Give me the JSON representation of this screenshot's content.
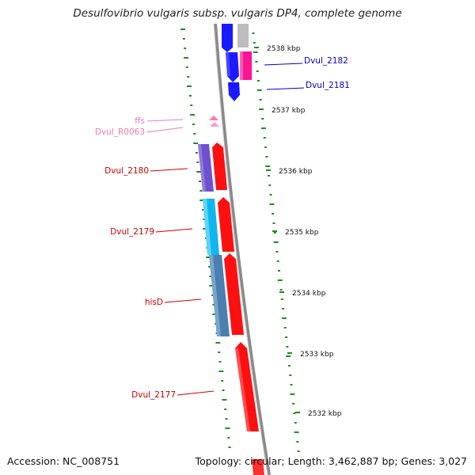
{
  "title": "Desulfovibrio vulgaris subsp. vulgaris DP4, complete genome",
  "footer": {
    "accession": "Accession: NC_008751",
    "stats": "Topology: circular; Length: 3,462,887 bp; Genes: 3,027"
  },
  "ticks": [
    "2538 kbp",
    "2537 kbp",
    "2536 kbp",
    "2535 kbp",
    "2534 kbp",
    "2533 kbp",
    "2532 kbp"
  ],
  "genes_forward": [
    {
      "label": "Dvul_2182",
      "color": "#0000cc"
    },
    {
      "label": "Dvul_2181",
      "color": "#0000cc"
    }
  ],
  "genes_reverse": [
    {
      "label": "ffs",
      "color": "#f07ab4"
    },
    {
      "label": "Dvul_R0063",
      "color": "#f07ab4"
    },
    {
      "label": "Dvul_2180",
      "color": "#cc0000"
    },
    {
      "label": "Dvul_2179",
      "color": "#cc0000"
    },
    {
      "label": "hisD",
      "color": "#cc0000"
    },
    {
      "label": "Dvul_2177",
      "color": "#cc0000"
    }
  ],
  "colors": {
    "backbone": "#8c8c8c",
    "gc_dots": "#1f8c1f",
    "forward_cds": "#0000ff",
    "reverse_cds": "#ff0000",
    "rna": "#ff77bb",
    "magenta_cds": "#ff2aa0",
    "purple_cds": "#7755cc",
    "cyan_cds": "#11bbee",
    "steel_cds": "#4a7fb0",
    "grey_cds": "#bbbbbb"
  }
}
